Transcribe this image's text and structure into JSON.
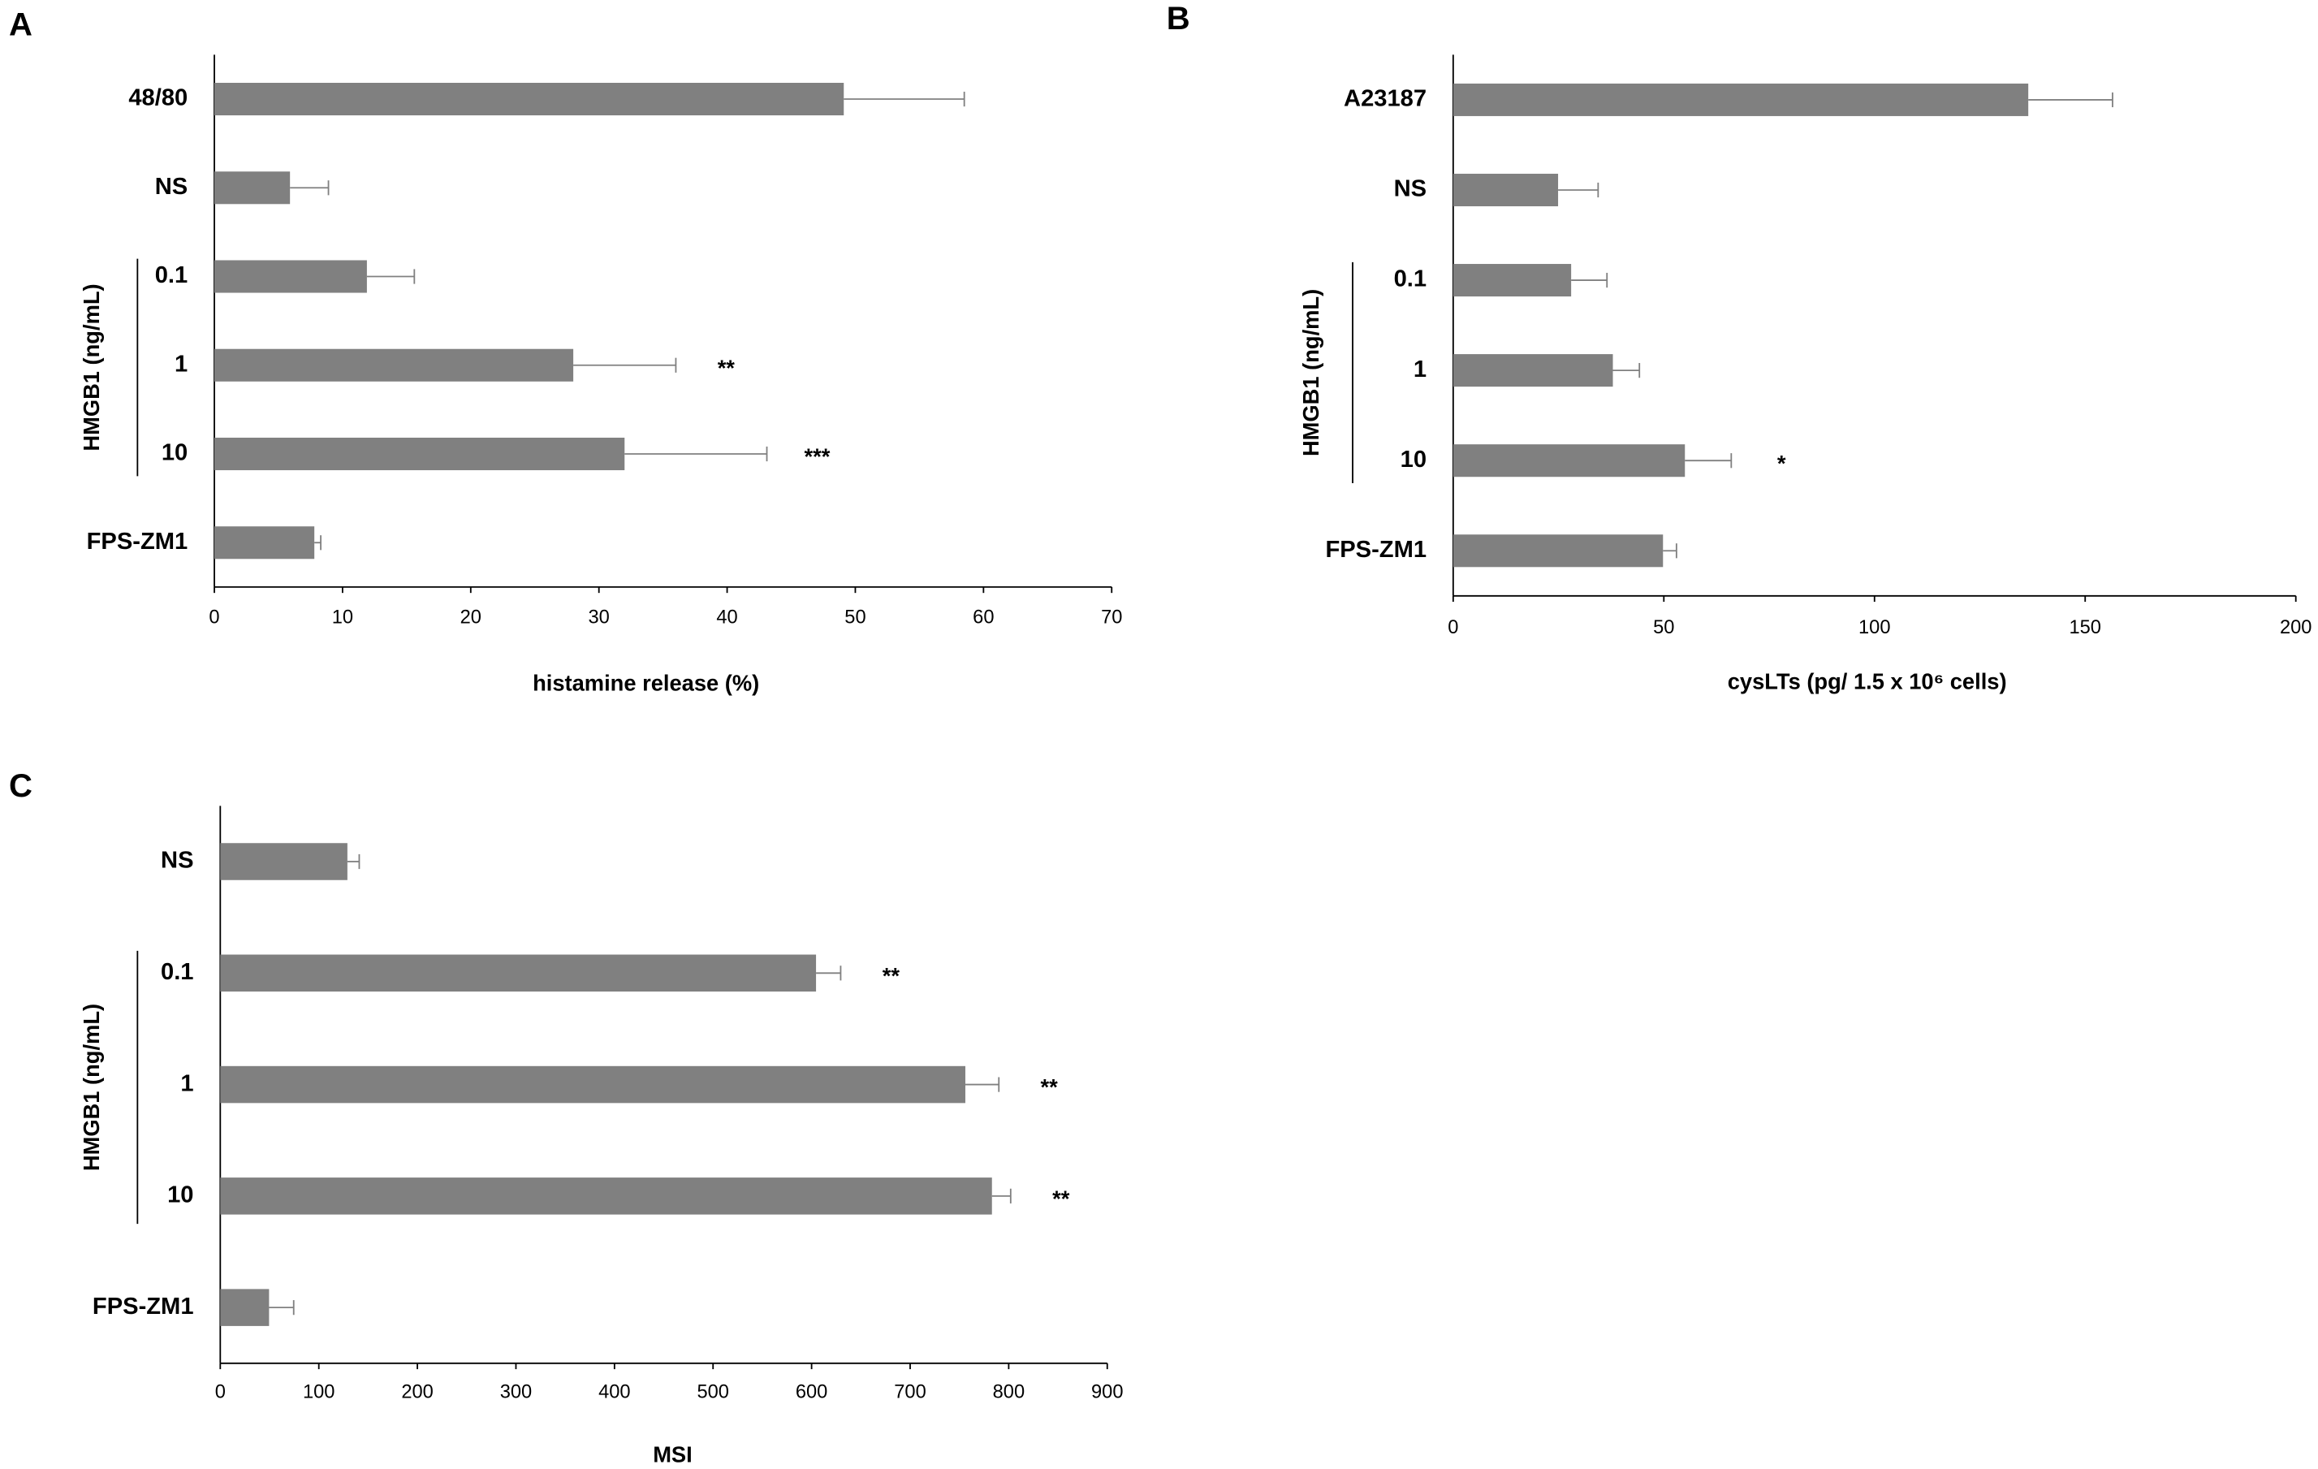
{
  "chart_data": [
    {
      "type": "bar",
      "panel": "A",
      "orientation": "horizontal",
      "categories": [
        "48/80",
        "NS",
        "0.1",
        "1",
        "10",
        "FPS-ZM1"
      ],
      "values": [
        49.1,
        5.9,
        11.9,
        28,
        32,
        7.8
      ],
      "errors": [
        9.4,
        3,
        3.7,
        8,
        11.1,
        0.5
      ],
      "annotations": [
        {
          "index": 3,
          "text": "**"
        },
        {
          "index": 4,
          "text": "***"
        }
      ],
      "group_label": "HMGB1 (ng/mL)",
      "xlabel": "histamine release (%)",
      "xlim": [
        0,
        70
      ],
      "xticks": [
        0,
        10,
        20,
        30,
        40,
        50,
        60,
        70
      ],
      "color": "#808080"
    },
    {
      "type": "bar",
      "panel": "B",
      "orientation": "horizontal",
      "categories": [
        "A23187",
        "NS",
        "0.1",
        "1",
        "10",
        "FPS-ZM1"
      ],
      "values": [
        136.5,
        24.9,
        28,
        37.9,
        55,
        49.8
      ],
      "errors": [
        20,
        9.5,
        8.5,
        6.3,
        11,
        3.2
      ],
      "annotations": [
        {
          "index": 4,
          "text": "*"
        }
      ],
      "group_label": "HMGB1 (ng/mL)",
      "xlabel": "cysLTs (pg/ 1.5 x 10⁶ cells)",
      "xlim": [
        0,
        200
      ],
      "xticks": [
        0,
        50,
        100,
        150,
        200
      ],
      "color": "#808080"
    },
    {
      "type": "bar",
      "panel": "C",
      "orientation": "horizontal",
      "categories": [
        "NS",
        "0.1",
        "1",
        "10",
        "FPS-ZM1"
      ],
      "values": [
        129,
        604.5,
        756,
        783,
        49.5
      ],
      "errors": [
        12,
        25,
        34,
        19,
        25
      ],
      "annotations": [
        {
          "index": 1,
          "text": "**"
        },
        {
          "index": 2,
          "text": "**"
        },
        {
          "index": 3,
          "text": "**"
        }
      ],
      "group_label": "HMGB1 (ng/mL)",
      "xlabel": "MSI",
      "xlim": [
        0,
        900
      ],
      "xticks": [
        0,
        100,
        200,
        300,
        400,
        500,
        600,
        700,
        800,
        900
      ],
      "color": "#808080"
    }
  ]
}
